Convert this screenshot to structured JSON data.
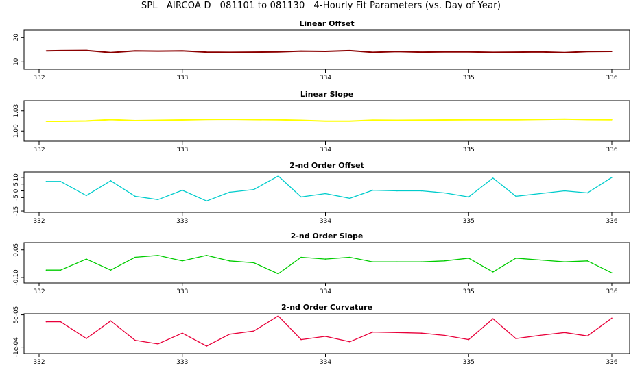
{
  "title": "SPL   AIRCOA D   081101 to 081130   4-Hourly Fit Parameters (vs. Day of Year)",
  "chart_data": [
    {
      "type": "line",
      "title": "Linear Offset",
      "color": "#8b0000",
      "xlim": [
        332,
        336
      ],
      "ylim": [
        7,
        23
      ],
      "yticks": [
        "10",
        "20"
      ],
      "ytick_values": [
        10,
        20
      ],
      "xticks": [
        "332",
        "333",
        "334",
        "335",
        "336"
      ],
      "x": [
        332.05,
        332.15,
        332.33,
        332.5,
        332.67,
        332.83,
        333.0,
        333.17,
        333.33,
        333.5,
        333.67,
        333.83,
        334.0,
        334.17,
        334.33,
        334.5,
        334.67,
        334.83,
        335.0,
        335.17,
        335.33,
        335.5,
        335.67,
        335.83,
        336.0
      ],
      "y": [
        14.5,
        14.6,
        14.7,
        13.8,
        14.5,
        14.4,
        14.5,
        14.0,
        13.9,
        14.0,
        14.1,
        14.4,
        14.3,
        14.6,
        13.9,
        14.2,
        14.0,
        14.1,
        14.1,
        13.9,
        14.0,
        14.1,
        13.8,
        14.2,
        14.3
      ]
    },
    {
      "type": "line",
      "title": "Linear Slope",
      "color": "#ffff00",
      "xlim": [
        332,
        336
      ],
      "ylim": [
        0.985,
        1.045
      ],
      "yticks": [
        "1.00",
        "1.03"
      ],
      "ytick_values": [
        1.0,
        1.03
      ],
      "xticks": [
        "332",
        "333",
        "334",
        "335",
        "336"
      ],
      "x": [
        332.05,
        332.15,
        332.33,
        332.5,
        332.67,
        332.83,
        333.0,
        333.17,
        333.33,
        333.5,
        333.67,
        333.83,
        334.0,
        334.17,
        334.33,
        334.5,
        334.67,
        334.83,
        335.0,
        335.17,
        335.33,
        335.5,
        335.67,
        335.83,
        336.0
      ],
      "y": [
        1.0145,
        1.0145,
        1.015,
        1.017,
        1.0155,
        1.016,
        1.0165,
        1.0172,
        1.0175,
        1.017,
        1.0168,
        1.016,
        1.0148,
        1.0148,
        1.0162,
        1.016,
        1.0162,
        1.0165,
        1.0168,
        1.0168,
        1.0168,
        1.0172,
        1.0178,
        1.017,
        1.0168
      ]
    },
    {
      "type": "line",
      "title": "2-nd Order Offset",
      "color": "#00cccc",
      "xlim": [
        332,
        336
      ],
      "ylim": [
        -16,
        14
      ],
      "yticks": [
        "-15",
        "-5",
        "0",
        "5",
        "10"
      ],
      "ytick_values": [
        -15,
        -5,
        0,
        5,
        10
      ],
      "xticks": [
        "332",
        "333",
        "334",
        "335",
        "336"
      ],
      "x": [
        332.05,
        332.15,
        332.33,
        332.5,
        332.67,
        332.83,
        333.0,
        333.17,
        333.33,
        333.5,
        333.67,
        333.83,
        334.0,
        334.17,
        334.33,
        334.5,
        334.67,
        334.83,
        335.0,
        335.17,
        335.33,
        335.5,
        335.67,
        335.83,
        336.0
      ],
      "y": [
        7,
        7,
        -3.5,
        7.5,
        -4,
        -6.5,
        0.5,
        -7.5,
        -1,
        1,
        11,
        -4.5,
        -2,
        -5.5,
        0.5,
        0,
        0,
        -1.5,
        -4.5,
        9.5,
        -4,
        -2,
        0,
        -1.5,
        10
      ]
    },
    {
      "type": "line",
      "title": "2-nd Order Slope",
      "color": "#00cc00",
      "xlim": [
        332,
        336
      ],
      "ylim": [
        -0.13,
        0.09
      ],
      "yticks": [
        "-0.10",
        "0.05"
      ],
      "ytick_values": [
        -0.1,
        0.05
      ],
      "xticks": [
        "332",
        "333",
        "334",
        "335",
        "336"
      ],
      "x": [
        332.05,
        332.15,
        332.33,
        332.5,
        332.67,
        332.83,
        333.0,
        333.17,
        333.33,
        333.5,
        333.67,
        333.83,
        334.0,
        334.17,
        334.33,
        334.5,
        334.67,
        334.83,
        335.0,
        335.17,
        335.33,
        335.5,
        335.67,
        335.83,
        336.0
      ],
      "y": [
        -0.06,
        -0.06,
        0.0,
        -0.06,
        0.01,
        0.02,
        -0.01,
        0.02,
        -0.01,
        -0.02,
        -0.08,
        0.01,
        0.0,
        0.01,
        -0.015,
        -0.015,
        -0.015,
        -0.01,
        0.005,
        -0.07,
        0.005,
        -0.005,
        -0.015,
        -0.01,
        -0.075
      ]
    },
    {
      "type": "line",
      "title": "2-nd Order Curvature",
      "color": "#e8003a",
      "xlim": [
        332,
        336
      ],
      "ylim": [
        -0.00013,
        5.5e-05
      ],
      "yticks": [
        "-1e-04",
        "5e-05"
      ],
      "ytick_values": [
        -0.0001,
        5e-05
      ],
      "xticks": [
        "332",
        "333",
        "334",
        "335",
        "336"
      ],
      "x": [
        332.05,
        332.15,
        332.33,
        332.5,
        332.67,
        332.83,
        333.0,
        333.17,
        333.33,
        333.5,
        333.67,
        333.83,
        334.0,
        334.17,
        334.33,
        334.5,
        334.67,
        334.83,
        335.0,
        335.17,
        335.33,
        335.5,
        335.67,
        335.83,
        336.0
      ],
      "y": [
        1.8e-05,
        1.8e-05,
        -6e-05,
        2.2e-05,
        -6.8e-05,
        -8.5e-05,
        -3.5e-05,
        -9.5e-05,
        -4e-05,
        -2.5e-05,
        4.5e-05,
        -6.5e-05,
        -5e-05,
        -7.5e-05,
        -3e-05,
        -3.2e-05,
        -3.5e-05,
        -4.5e-05,
        -6.5e-05,
        3.2e-05,
        -6e-05,
        -4.5e-05,
        -3.2e-05,
        -4.8e-05,
        3.5e-05
      ]
    }
  ]
}
